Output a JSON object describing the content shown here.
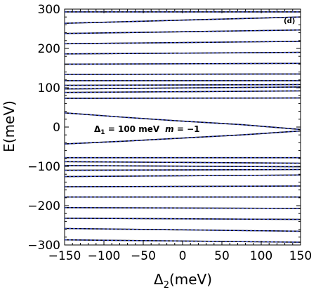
{
  "chart_data": {
    "type": "line",
    "title": "",
    "panel_label": "(d)",
    "xlabel_main": "Δ",
    "xlabel_sub": "2",
    "xlabel_unit": "(meV)",
    "ylabel": "E(meV)",
    "xlim": [
      -150,
      150
    ],
    "ylim": [
      -300,
      300
    ],
    "xticks": [
      -150,
      -100,
      -50,
      0,
      50,
      100,
      150
    ],
    "xtick_labels": [
      "−150",
      "−100",
      "−50",
      "0",
      "50",
      "100",
      "150"
    ],
    "yticks": [
      -300,
      -200,
      -100,
      0,
      100,
      200,
      300
    ],
    "ytick_labels": [
      "−300",
      "−200",
      "−100",
      "0",
      "100",
      "200",
      "300"
    ],
    "annotation": {
      "delta_symbol": "Δ",
      "delta_sub": "1",
      "delta_value": " = 100 meV",
      "m_symbol": "m",
      "m_value": " = −1"
    },
    "grid": false,
    "line_color": "#000000",
    "dash_color": "#3344cc",
    "series": [
      {
        "values": [
          [
            -150,
            293
          ],
          [
            150,
            293
          ]
        ]
      },
      {
        "values": [
          [
            -150,
            264
          ],
          [
            150,
            280
          ]
        ]
      },
      {
        "values": [
          [
            -150,
            238
          ],
          [
            150,
            247
          ]
        ]
      },
      {
        "values": [
          [
            -150,
            212
          ],
          [
            150,
            218
          ]
        ]
      },
      {
        "values": [
          [
            -150,
            186
          ],
          [
            150,
            190
          ]
        ]
      },
      {
        "values": [
          [
            -150,
            160
          ],
          [
            150,
            162
          ]
        ]
      },
      {
        "values": [
          [
            -150,
            134
          ],
          [
            150,
            135
          ]
        ]
      },
      {
        "values": [
          [
            -150,
            118
          ],
          [
            150,
            118
          ]
        ]
      },
      {
        "values": [
          [
            -150,
            106
          ],
          [
            150,
            108
          ]
        ]
      },
      {
        "values": [
          [
            -150,
            97
          ],
          [
            150,
            102
          ]
        ]
      },
      {
        "values": [
          [
            -150,
            88
          ],
          [
            150,
            92
          ]
        ]
      },
      {
        "values": [
          [
            -150,
            73
          ],
          [
            150,
            74
          ]
        ]
      },
      {
        "values": [
          [
            -150,
            36
          ],
          [
            -75,
            25
          ],
          [
            0,
            15
          ],
          [
            75,
            6
          ],
          [
            150,
            -6
          ]
        ]
      },
      {
        "values": [
          [
            -150,
            -43
          ],
          [
            -75,
            -36
          ],
          [
            0,
            -28
          ],
          [
            75,
            -20
          ],
          [
            150,
            -10
          ]
        ]
      },
      {
        "values": [
          [
            -150,
            -78
          ],
          [
            150,
            -78
          ]
        ]
      },
      {
        "values": [
          [
            -150,
            -88
          ],
          [
            150,
            -92
          ]
        ]
      },
      {
        "values": [
          [
            -150,
            -98
          ],
          [
            150,
            -101
          ]
        ]
      },
      {
        "values": [
          [
            -150,
            -110
          ],
          [
            150,
            -108
          ]
        ]
      },
      {
        "values": [
          [
            -150,
            -126
          ],
          [
            150,
            -122
          ]
        ]
      },
      {
        "values": [
          [
            -150,
            -152
          ],
          [
            150,
            -150
          ]
        ]
      },
      {
        "values": [
          [
            -150,
            -178
          ],
          [
            150,
            -178
          ]
        ]
      },
      {
        "values": [
          [
            -150,
            -205
          ],
          [
            150,
            -207
          ]
        ]
      },
      {
        "values": [
          [
            -150,
            -232
          ],
          [
            150,
            -235
          ]
        ]
      },
      {
        "values": [
          [
            -150,
            -258
          ],
          [
            150,
            -265
          ]
        ]
      },
      {
        "values": [
          [
            -150,
            -287
          ],
          [
            150,
            -293
          ]
        ]
      }
    ]
  }
}
